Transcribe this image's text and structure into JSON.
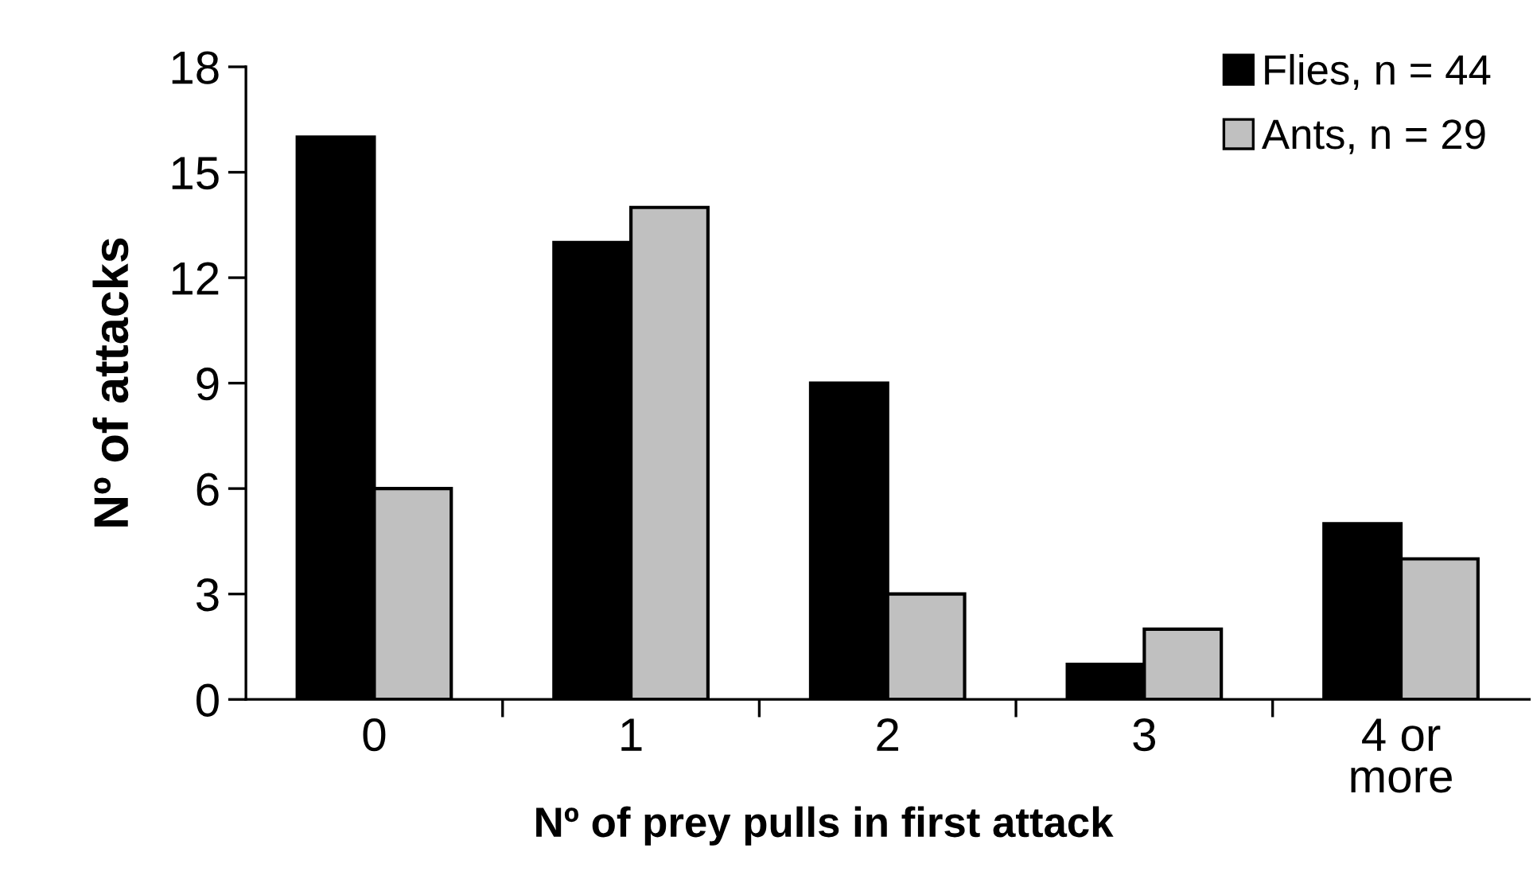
{
  "chart_data": {
    "type": "bar",
    "xlabel": "Nº of prey pulls in first attack",
    "ylabel": "Nº of attacks",
    "categories": [
      "0",
      "1",
      "2",
      "3",
      "4 or\nmore"
    ],
    "series": [
      {
        "name": "Flies, n = 44",
        "color": "#000000",
        "values": [
          16,
          13,
          9,
          1,
          5
        ]
      },
      {
        "name": "Ants, n = 29",
        "color": "#c0c0c0",
        "values": [
          6,
          14,
          3,
          2,
          4
        ]
      }
    ],
    "ylim": [
      0,
      18
    ],
    "yticks": [
      0,
      3,
      6,
      9,
      12,
      15,
      18
    ],
    "grid": false,
    "legend": "top right"
  }
}
